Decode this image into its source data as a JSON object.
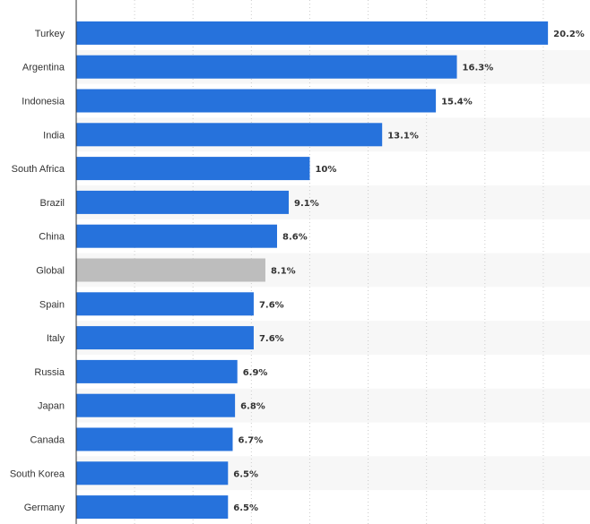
{
  "chart_data": {
    "type": "bar",
    "orientation": "horizontal",
    "categories": [
      "Turkey",
      "Argentina",
      "Indonesia",
      "India",
      "South Africa",
      "Brazil",
      "China",
      "Global",
      "Spain",
      "Italy",
      "Russia",
      "Japan",
      "Canada",
      "South Korea",
      "Germany"
    ],
    "values": [
      20.2,
      16.3,
      15.4,
      13.1,
      10,
      9.1,
      8.6,
      8.1,
      7.6,
      7.6,
      6.9,
      6.8,
      6.7,
      6.5,
      6.5
    ],
    "value_labels": [
      "20.2%",
      "16.3%",
      "15.4%",
      "13.1%",
      "10%",
      "9.1%",
      "8.6%",
      "8.1%",
      "7.6%",
      "7.6%",
      "6.9%",
      "6.8%",
      "6.7%",
      "6.5%",
      "6.5%"
    ],
    "xlim": [
      0,
      22
    ],
    "grid": true,
    "colors": {
      "bar": "#2672dc",
      "highlight": "#bdbdbd",
      "highlight_category": "Global",
      "stripe": "#f7f7f7",
      "grid": "#cccccc",
      "axis": "#333333",
      "text": "#333333"
    }
  }
}
